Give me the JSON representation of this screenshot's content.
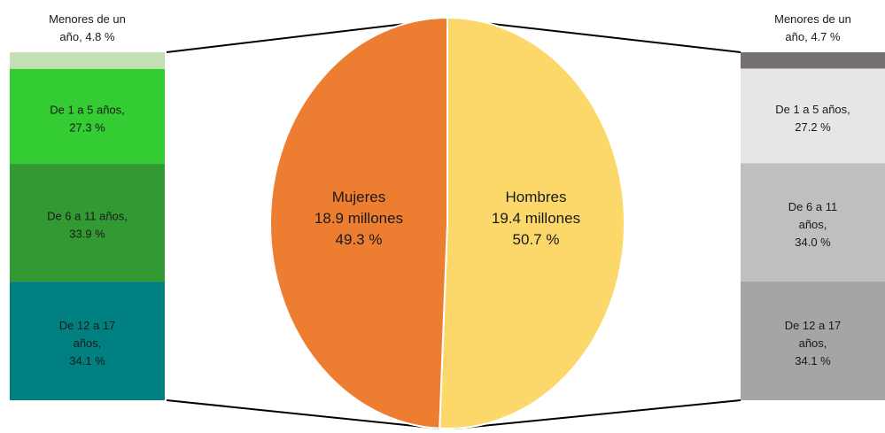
{
  "chart_data": {
    "type": "bar-of-pie",
    "pie": {
      "slices": [
        {
          "name": "Mujeres",
          "value_millions": 18.9,
          "percent": 49.3,
          "value_text": "18.9 millones",
          "percent_text": "49.3 %",
          "color": "#ED7D31"
        },
        {
          "name": "Hombres",
          "value_millions": 19.4,
          "percent": 50.7,
          "value_text": "19.4 millones",
          "percent_text": "50.7 %",
          "color": "#FCD86B"
        }
      ]
    },
    "bars": [
      {
        "group": "Mujeres",
        "segments": [
          {
            "label_lines": [
              "Menores de un",
              "año, 4.8 %"
            ],
            "percent": 4.8,
            "color": "#C5DFB5",
            "label_outside": true
          },
          {
            "label_lines": [
              "De 1 a 5 años,",
              "27.3 %"
            ],
            "percent": 27.3,
            "color": "#33CC33"
          },
          {
            "label_lines": [
              "De 6 a 11 años,",
              "33.9 %"
            ],
            "percent": 33.9,
            "color": "#339933"
          },
          {
            "label_lines": [
              "De 12 a 17",
              "años,",
              "34.1 %"
            ],
            "percent": 34.1,
            "color": "#008080"
          }
        ]
      },
      {
        "group": "Hombres",
        "segments": [
          {
            "label_lines": [
              "Menores de un",
              "año, 4.7 %"
            ],
            "percent": 4.7,
            "color": "#767171",
            "label_outside": true
          },
          {
            "label_lines": [
              "De 1 a 5 años,",
              "27.2 %"
            ],
            "percent": 27.2,
            "color": "#E7E6E6"
          },
          {
            "label_lines": [
              "De 6 a 11",
              "años,",
              "34.0 %"
            ],
            "percent": 34.0,
            "color": "#BFBFBF"
          },
          {
            "label_lines": [
              "De 12 a 17",
              "años,",
              "34.1 %"
            ],
            "percent": 34.1,
            "color": "#A5A5A5"
          }
        ]
      }
    ]
  }
}
